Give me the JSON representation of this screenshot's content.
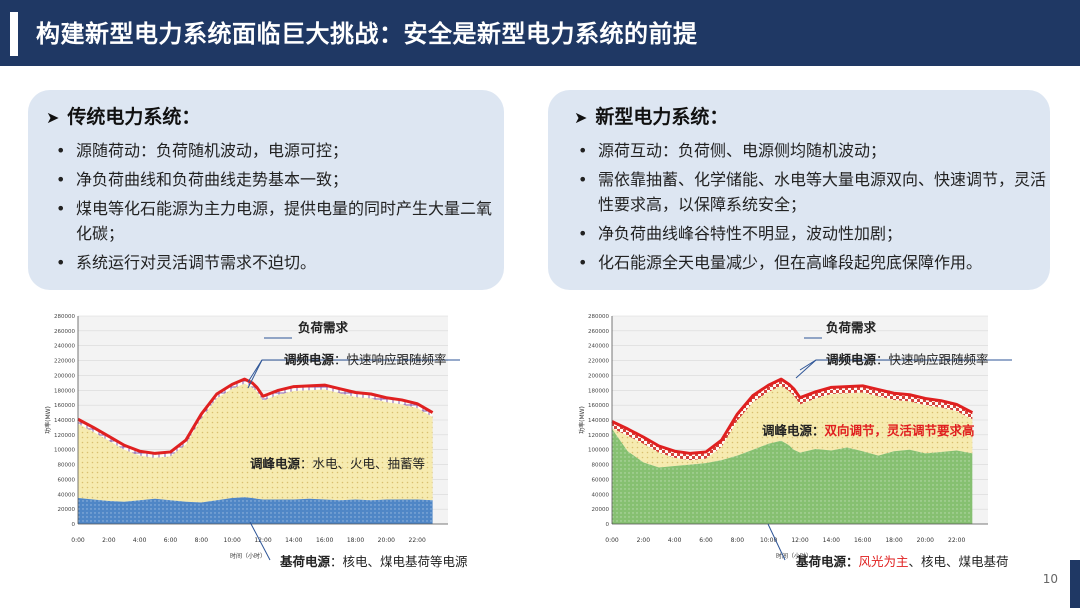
{
  "header": {
    "title": "构建新型电力系统面临巨大挑战：安全是新型电力系统的前提"
  },
  "left_panel": {
    "heading": "传统电力系统：",
    "bullets": [
      "源随荷动：负荷随机波动，电源可控；",
      "净负荷曲线和负荷曲线走势基本一致；",
      "煤电等化石能源为主力电源，提供电量的同时产生大量二氧化碳；",
      "系统运行对灵活调节需求不迫切。"
    ]
  },
  "right_panel": {
    "heading": "新型电力系统：",
    "bullets": [
      "源荷互动：负荷侧、电源侧均随机波动；",
      "需依靠抽蓄、化学储能、水电等大量电源双向、快速调节，灵活性要求高，以保障系统安全；",
      "净负荷曲线峰谷特性不明显，波动性加剧；",
      "化石能源全天电量减少，但在高峰段起兜底保障作用。"
    ]
  },
  "left_chart": {
    "ann_load": "负荷需求",
    "ann_freq_head": "调频电源",
    "ann_freq_tail": "：快速响应跟随频率",
    "ann_peak_head": "调峰电源",
    "ann_peak_tail": "：水电、火电、抽蓄等",
    "ann_base_head": "基荷电源",
    "ann_base_tail": "：核电、煤电基荷等电源"
  },
  "right_chart": {
    "ann_load": "负荷需求",
    "ann_freq_head": "调频电源",
    "ann_freq_tail": "：快速响应跟随频率",
    "ann_peak_head": "调峰电源：",
    "ann_peak_red": "双向调节，灵活调节要求高",
    "ann_base_head": "基荷电源：",
    "ann_base_red": "风光为主",
    "ann_base_tail": "、核电、煤电基荷"
  },
  "chart_data": [
    {
      "type": "area",
      "xlabel": "时间（小时）",
      "ylabel": "功率(MW)",
      "ylim": [
        0,
        280000
      ],
      "yticks": [
        0,
        20000,
        40000,
        60000,
        80000,
        100000,
        120000,
        140000,
        160000,
        180000,
        200000,
        220000,
        240000,
        260000,
        280000
      ],
      "xticks": [
        "0:00",
        "2:00",
        "4:00",
        "6:00",
        "8:00",
        "10:00",
        "12:00",
        "14:00",
        "16:00",
        "18:00",
        "20:00",
        "22:00"
      ],
      "x_hours": [
        0,
        1,
        2,
        3,
        4,
        5,
        6,
        7,
        8,
        9,
        10,
        10.8,
        11.3,
        11.6,
        12,
        13,
        14,
        15,
        16,
        17,
        18,
        19,
        20,
        21,
        22,
        23
      ],
      "series": [
        {
          "values": [
            35000,
            33000,
            31000,
            30000,
            32000,
            34000,
            32000,
            30000,
            29000,
            32000,
            35000,
            36000,
            35000,
            34000,
            33000,
            33000,
            33000,
            34000,
            33000,
            32000,
            33000,
            32000,
            33000,
            33000,
            33000,
            32000
          ]
        },
        {
          "values": [
            141000,
            130000,
            118000,
            106000,
            98000,
            95000,
            97000,
            113000,
            148000,
            175000,
            188000,
            195000,
            190000,
            184000,
            172000,
            180000,
            185000,
            186000,
            187000,
            182000,
            177000,
            175000,
            170000,
            167000,
            162000,
            150000
          ]
        }
      ]
    },
    {
      "type": "area",
      "xlabel": "时间（小时）",
      "ylabel": "功率(MW)",
      "ylim": [
        0,
        280000
      ],
      "yticks": [
        0,
        20000,
        40000,
        60000,
        80000,
        100000,
        120000,
        140000,
        160000,
        180000,
        200000,
        220000,
        240000,
        260000,
        280000
      ],
      "xticks": [
        "0:00",
        "2:00",
        "4:00",
        "6:00",
        "8:00",
        "10:00",
        "12:00",
        "14:00",
        "16:00",
        "18:00",
        "20:00",
        "22:00"
      ],
      "x_hours": [
        0,
        1,
        2,
        3,
        4,
        5,
        6,
        7,
        8,
        9,
        10,
        10.8,
        11.3,
        11.6,
        12,
        13,
        14,
        15,
        16,
        17,
        18,
        19,
        20,
        21,
        22,
        23
      ],
      "series": [
        {
          "values": [
            128000,
            98000,
            83000,
            76000,
            78000,
            80000,
            82000,
            86000,
            92000,
            100000,
            108000,
            112000,
            106000,
            100000,
            96000,
            101000,
            99000,
            103000,
            98000,
            92000,
            98000,
            100000,
            95000,
            97000,
            99000,
            95000
          ]
        },
        {
          "values": [
            138000,
            128000,
            117000,
            105000,
            98000,
            95000,
            97000,
            113000,
            148000,
            173000,
            187000,
            195000,
            188000,
            182000,
            170000,
            178000,
            184000,
            185000,
            186000,
            181000,
            176000,
            174000,
            169000,
            166000,
            161000,
            150000
          ]
        }
      ]
    }
  ],
  "page": {
    "number": "10"
  },
  "colors": {
    "header_bg": "#1f3864",
    "panel_bg": "#dde6f2",
    "load_line": "#e02020",
    "peak_fill": "#f6ebb0",
    "base_fill_left": "#4f86c6",
    "base_fill_right": "#86c071",
    "accent_red": "#e02020"
  }
}
